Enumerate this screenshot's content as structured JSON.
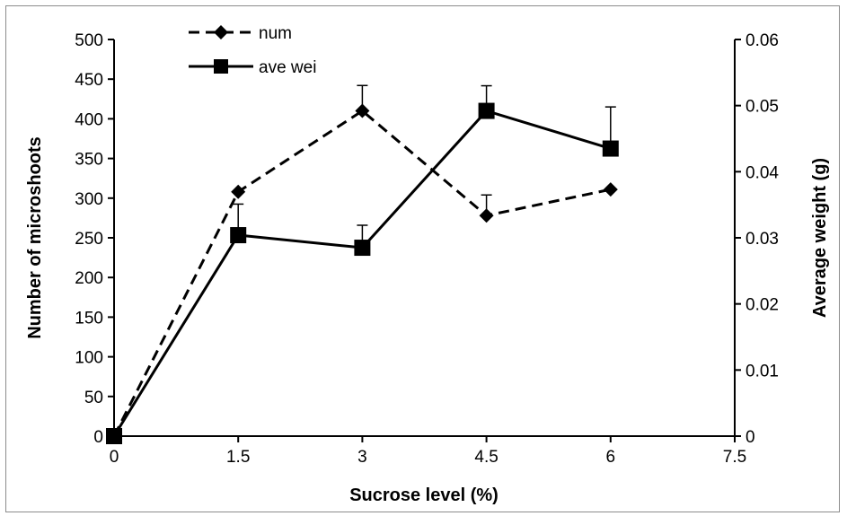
{
  "chart_data": {
    "type": "line",
    "title": "",
    "xlabel": "Sucrose level (%)",
    "ylabel": "Number of microshoots",
    "y2label": "Average weight (g)",
    "x": [
      0,
      1.5,
      3,
      4.5,
      6
    ],
    "xlim": [
      0,
      7.5
    ],
    "xticks": [
      "0",
      "1.5",
      "3",
      "4.5",
      "6",
      "7.5"
    ],
    "ylim": [
      0,
      500
    ],
    "yticks": [
      "0",
      "50",
      "100",
      "150",
      "200",
      "250",
      "300",
      "350",
      "400",
      "450",
      "500"
    ],
    "y2lim": [
      0,
      0.06
    ],
    "y2ticks": [
      "0",
      "0.01",
      "0.02",
      "0.03",
      "0.04",
      "0.05",
      "0.06"
    ],
    "grid": false,
    "legend_position": "top-left",
    "series": [
      {
        "name": "num",
        "axis": "left",
        "style": "dashed",
        "marker": "diamond",
        "values": [
          0,
          308,
          410,
          278,
          311
        ],
        "errors": [
          0,
          0,
          32,
          26,
          0
        ]
      },
      {
        "name": "ave wei",
        "axis": "right",
        "style": "solid",
        "marker": "square",
        "values": [
          0,
          0.0304,
          0.0285,
          0.0492,
          0.0435
        ],
        "errors": [
          0,
          0.0047,
          0.0034,
          0.0038,
          0.0063
        ]
      }
    ],
    "colors": {
      "line": "#000000",
      "frame": "#8c8c8c"
    }
  }
}
